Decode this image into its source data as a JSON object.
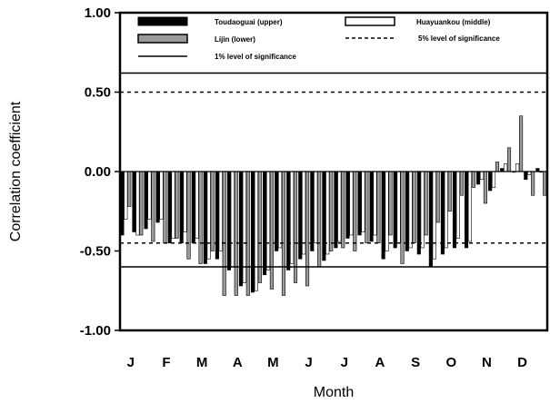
{
  "chart_data": {
    "type": "bar",
    "xlabel": "Month",
    "ylabel": "Correlation coefficient",
    "ylim": [
      -1.0,
      1.0
    ],
    "yticks": [
      "1.00",
      "0.50",
      "0.00",
      "-0.50",
      "-1.00"
    ],
    "ytick_values": [
      1.0,
      0.5,
      0.0,
      -0.5,
      -1.0
    ],
    "months": [
      "J",
      "F",
      "M",
      "A",
      "M",
      "J",
      "J",
      "A",
      "S",
      "O",
      "N",
      "D"
    ],
    "periods_per_month": 3,
    "grid": false,
    "legend_position": "top",
    "series": [
      {
        "name": "Toudaoguai (upper)",
        "color": "#000000",
        "values": [
          -0.4,
          -0.38,
          -0.36,
          -0.32,
          -0.45,
          -0.45,
          -0.45,
          -0.58,
          -0.55,
          -0.62,
          -0.72,
          -0.76,
          -0.65,
          -0.5,
          -0.62,
          -0.55,
          -0.5,
          -0.56,
          -0.48,
          -0.42,
          -0.4,
          -0.44,
          -0.55,
          -0.48,
          -0.5,
          -0.52,
          -0.6,
          -0.52,
          -0.48,
          -0.48,
          -0.08,
          -0.12,
          0.02,
          0.0,
          -0.05,
          0.02
        ]
      },
      {
        "name": "Huayuankou (middle)",
        "color": "#ffffff",
        "values": [
          -0.3,
          -0.4,
          -0.3,
          -0.3,
          -0.42,
          -0.38,
          -0.42,
          -0.55,
          -0.5,
          -0.6,
          -0.7,
          -0.75,
          -0.62,
          -0.48,
          -0.58,
          -0.52,
          -0.45,
          -0.52,
          -0.44,
          -0.4,
          -0.38,
          -0.4,
          -0.5,
          -0.45,
          -0.48,
          -0.48,
          -0.55,
          -0.48,
          -0.42,
          -0.44,
          -0.05,
          -0.1,
          0.05,
          0.05,
          -0.02,
          0.0
        ]
      },
      {
        "name": "Lijin (lower)",
        "color": "#9a9a9a",
        "values": [
          -0.22,
          -0.4,
          -0.44,
          -0.45,
          -0.42,
          -0.55,
          -0.58,
          -0.5,
          -0.78,
          -0.78,
          -0.78,
          -0.7,
          -0.74,
          -0.78,
          -0.7,
          -0.72,
          -0.6,
          -0.5,
          -0.48,
          -0.5,
          -0.45,
          -0.45,
          -0.4,
          -0.58,
          -0.45,
          -0.4,
          -0.32,
          -0.25,
          -0.15,
          -0.1,
          -0.2,
          0.06,
          0.15,
          0.35,
          -0.15,
          -0.15
        ]
      }
    ],
    "reference_lines": [
      {
        "name": "5% level of significance",
        "style": "dashed",
        "values": [
          0.5,
          -0.45
        ]
      },
      {
        "name": "1% level of significance",
        "style": "solid",
        "values": [
          0.62,
          -0.6
        ]
      }
    ]
  }
}
